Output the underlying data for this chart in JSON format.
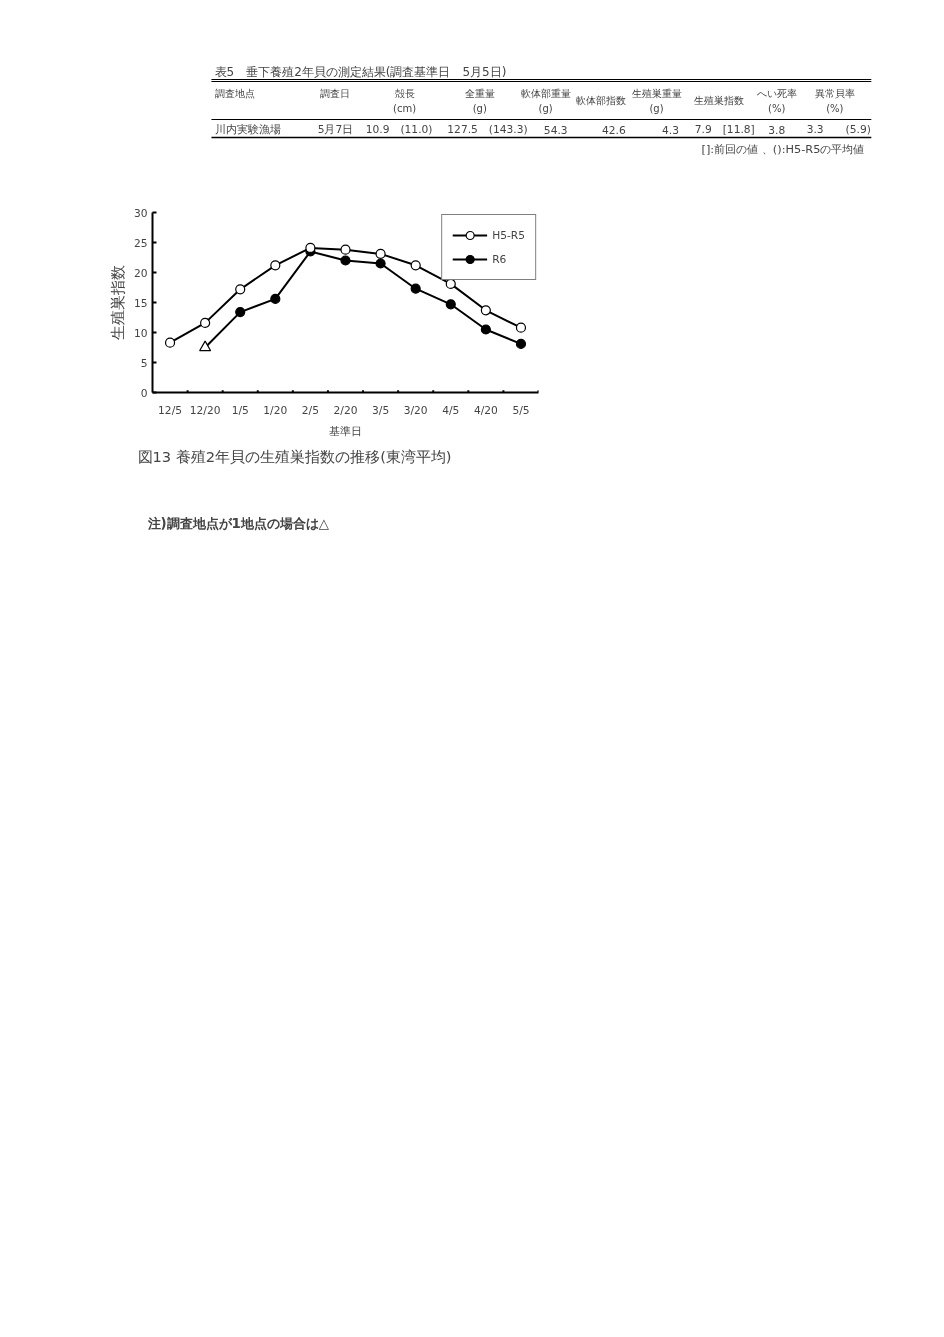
{
  "chart_data": [
    {
      "type": "other",
      "title": "表5　垂下養殖2年貝の測定結果(調査基準日　5月5日)",
      "categories": [
        "調査地点",
        "調査日",
        "殻長\n(cm)",
        "全重量\n(g)",
        "軟体部重量\n(g)",
        "軟体部指数",
        "生殖巣重量\n(g)",
        "生殖巣指数",
        "へい死率\n(%)",
        "異常貝率\n(%)"
      ],
      "cell_labels": [
        [
          "川内実験漁場",
          "5月7日",
          "10.9　(11.0)",
          "127.5　(143.3)",
          "54.3",
          "42.6",
          "4.3",
          "7.9　[11.8]",
          "3.8",
          "3.3　　(5.9)"
        ]
      ],
      "annotations": [
        "[]:前回の値 、():H5-R5の平均値"
      ]
    },
    {
      "type": "line",
      "title": "図13 養殖2年貝の生殖巣指数の推移(東湾平均)",
      "xlabel": "基準日",
      "ylabel": "生殖巣指数",
      "categories": [
        "12/5",
        "12/20",
        "1/5",
        "1/20",
        "2/5",
        "2/20",
        "3/5",
        "3/20",
        "4/5",
        "4/20",
        "5/5"
      ],
      "ylim": [
        0,
        30
      ],
      "yticks": [
        0,
        5,
        10,
        15,
        20,
        25,
        30
      ],
      "grid": false,
      "legend": "top right",
      "line_style": "solid",
      "series": [
        {
          "name": "H5-R5",
          "color": "#000000",
          "marker": "circle",
          "values": [
            8.3,
            11.6,
            17.2,
            21.2,
            24.1,
            23.8,
            23.1,
            21.2,
            18.1,
            13.7,
            10.8
          ]
        },
        {
          "name": "R6",
          "color": "#000000",
          "marker": "circle",
          "values": [
            null,
            7.5,
            13.4,
            15.6,
            23.5,
            22.0,
            21.5,
            17.3,
            14.7,
            10.5,
            8.1
          ]
        },
        {
          "type": "scatter",
          "color": "#000000",
          "marker": "triangle",
          "values": [
            null,
            7.5,
            null,
            null,
            null,
            null,
            null,
            null,
            null,
            null,
            null
          ]
        }
      ],
      "annotations": [
        "注)調査地点が1地点の場合は△"
      ]
    }
  ]
}
